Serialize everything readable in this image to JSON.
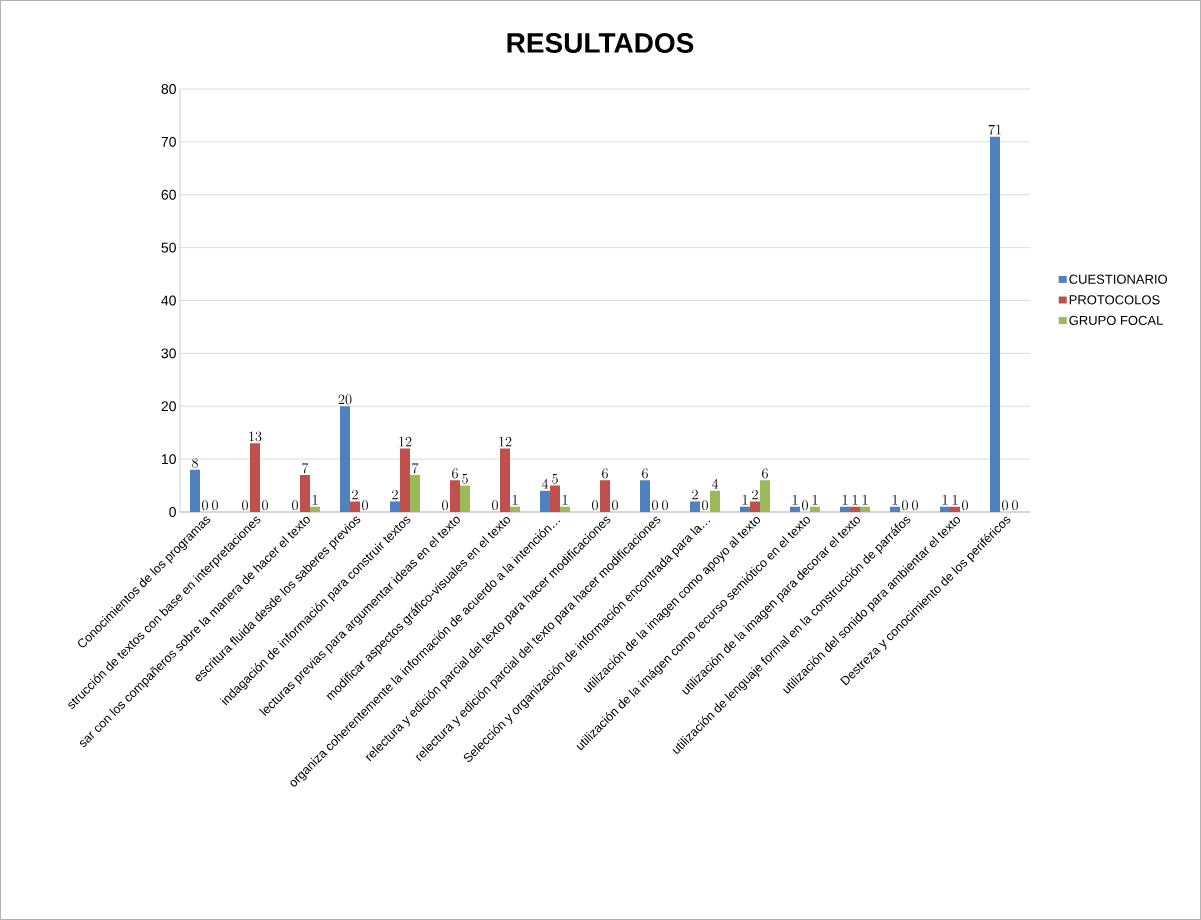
{
  "chart_data": {
    "type": "bar",
    "title": "RESULTADOS",
    "categories": [
      "Conocimientos de los programas",
      "strucción de textos con base en interpretaciones",
      "sar con los compañeros sobre la manera de hacer el texto",
      "escritura fluida desde los saberes previos",
      "indagación de información para construir textos",
      "lecturas previas para argumentar ideas en el texto",
      "modificar aspectos gráfico-visuales en el texto",
      "organiza coherentemente la información de acuerdo a la intención…",
      "relectura y edición parcial del texto para hacer modificaciones",
      "relectura y edición parcial del texto para hacer modificaciones",
      "Selección y organización de información encontrada para la…",
      "utilización de la imagen como apoyo al texto",
      "utilización de la imágen como recurso semiótico en el texto",
      "utilización de la imagen para decorar el texto",
      "utilización de lenguaje formal en la construcción de parráfos",
      "utilización del sonido para ambientar el texto",
      "Destreza y conocimiento de los periféricos"
    ],
    "series": [
      {
        "name": "CUESTIONARIO",
        "color": "#4f81bd",
        "values": [
          8,
          0,
          0,
          20,
          2,
          0,
          0,
          4,
          0,
          6,
          2,
          1,
          1,
          1,
          1,
          1,
          71
        ]
      },
      {
        "name": "PROTOCOLOS",
        "color": "#c0504d",
        "values": [
          0,
          13,
          7,
          2,
          12,
          6,
          12,
          5,
          6,
          0,
          0,
          2,
          0,
          1,
          0,
          1,
          0
        ]
      },
      {
        "name": "GRUPO FOCAL",
        "color": "#9bbb59",
        "values": [
          0,
          0,
          1,
          0,
          7,
          5,
          1,
          1,
          0,
          0,
          4,
          6,
          1,
          1,
          0,
          0,
          0
        ]
      }
    ],
    "ylim": [
      0,
      80
    ],
    "yticks": [
      0,
      10,
      20,
      30,
      40,
      50,
      60,
      70,
      80
    ],
    "grid": "y",
    "legend": "right",
    "data_labels": true
  }
}
